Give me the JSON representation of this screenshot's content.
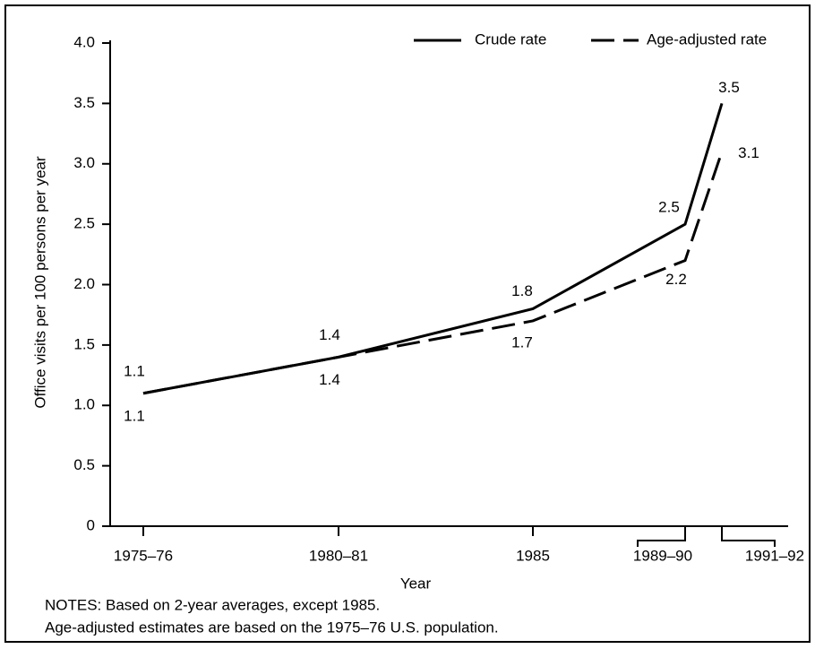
{
  "chart_data": {
    "type": "line",
    "y_label": "Office visits per 100 persons per year",
    "x_label": "Year",
    "categories": [
      "1975–76",
      "1980–81",
      "1985",
      "1989–90",
      "1991–92"
    ],
    "series": [
      {
        "name": "Crude rate",
        "color": "#000000",
        "dash": "solid",
        "values": [
          1.1,
          1.4,
          1.8,
          2.5,
          3.5
        ]
      },
      {
        "name": "Age-adjusted rate",
        "color": "#000000",
        "dash": "dashed",
        "values": [
          1.1,
          1.4,
          1.7,
          2.2,
          3.1
        ]
      }
    ],
    "ylim": [
      0,
      4
    ],
    "yticks": [
      0,
      0.5,
      {
        "value": 1,
        "label": "1.0"
      },
      1.5,
      {
        "value": 2,
        "label": "2.0"
      },
      2.5,
      {
        "value": 3,
        "label": "3.0"
      },
      3.5,
      {
        "value": 4,
        "label": "4.0"
      }
    ],
    "legend": "top-right",
    "notes": [
      "NOTES: Based on 2-year averages, except 1985.",
      "Age-adjusted estimates are based on the 1975–76 U.S. population."
    ]
  }
}
